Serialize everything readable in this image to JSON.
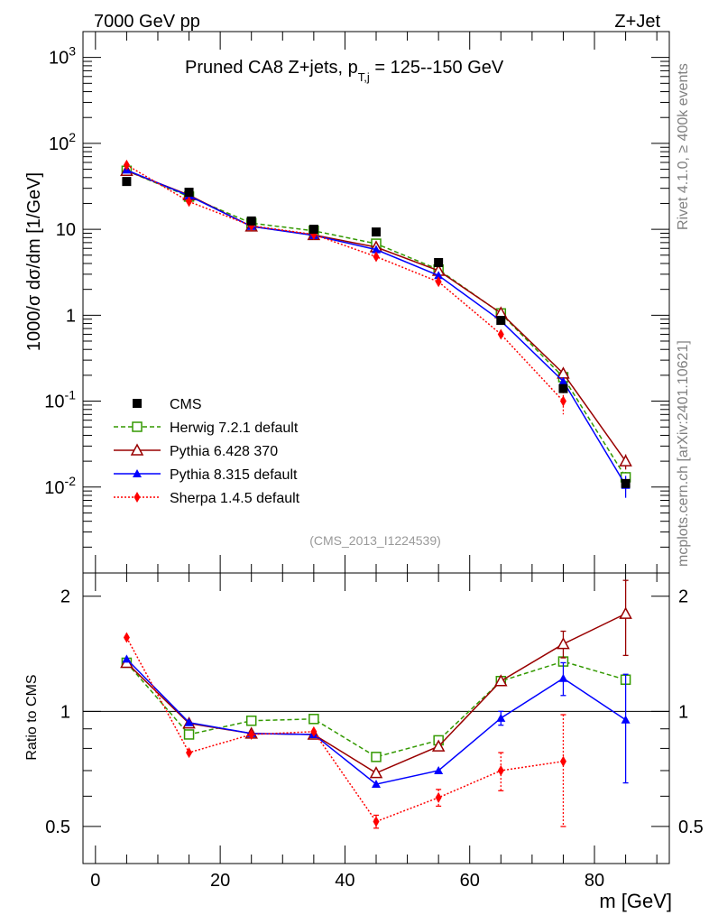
{
  "header": {
    "energy_label": "7000 GeV pp",
    "process_label": "Z+Jet",
    "title_main": "Pruned CA8 Z+jets, p",
    "title_sub": "T,j",
    "title_rest": " = 125--150 GeV",
    "side_top": "Rivet 4.1.0, ≥ 400k events",
    "side_bottom": "mcplots.cern.ch [arXiv:2401.10621]",
    "analysis_id": "(CMS_2013_I1224539)"
  },
  "chart_data": [
    {
      "type": "scatter",
      "panel": "main",
      "ylabel": "1000/σ  dσ/dm [1/GeV]",
      "yscale": "log",
      "ylim": [
        0.001,
        2000
      ],
      "xlim": [
        -2,
        92
      ],
      "ytick_labels": [
        {
          "base": "10",
          "exp": "-2",
          "value": 0.01
        },
        {
          "base": "10",
          "exp": "-1",
          "value": 0.1
        },
        {
          "base": "1",
          "exp": "",
          "value": 1
        },
        {
          "base": "10",
          "exp": "",
          "value": 10
        },
        {
          "base": "10",
          "exp": "2",
          "value": 100
        },
        {
          "base": "10",
          "exp": "3",
          "value": 1000
        }
      ],
      "x": [
        5,
        15,
        25,
        35,
        45,
        55,
        65,
        75,
        85
      ],
      "series": [
        {
          "name": "CMS",
          "color": "#000000",
          "marker": "square-filled",
          "line": "none",
          "values": [
            36,
            27,
            12.5,
            10,
            9.3,
            4.1,
            0.87,
            0.14,
            0.011
          ],
          "errors": [
            0,
            0,
            0,
            0,
            0,
            0,
            0,
            0.01,
            0.001
          ]
        },
        {
          "name": "Herwig 7.2.1 default",
          "color": "#339900",
          "marker": "square-open",
          "line": "dashed",
          "values": [
            48,
            24,
            11.8,
            9.6,
            6.8,
            3.4,
            1.05,
            0.19,
            0.013
          ],
          "errors": [
            0,
            0,
            0,
            0,
            0,
            0,
            0,
            0.01,
            0.002
          ]
        },
        {
          "name": "Pythia 6.428 370",
          "color": "#990000",
          "marker": "triangle-open",
          "line": "solid",
          "values": [
            48,
            25,
            10.8,
            8.6,
            6.2,
            3.3,
            1.06,
            0.21,
            0.02
          ],
          "errors": [
            0,
            0,
            0,
            0,
            0,
            0,
            0,
            0.02,
            0.004
          ]
        },
        {
          "name": "Pythia 8.315 default",
          "color": "#0000ff",
          "marker": "triangle-filled",
          "line": "solid",
          "values": [
            49,
            24.5,
            10.8,
            8.5,
            5.8,
            2.9,
            0.86,
            0.17,
            0.0105
          ],
          "errors": [
            0,
            0,
            0,
            0,
            0,
            0,
            0,
            0.015,
            0.003
          ]
        },
        {
          "name": "Sherpa 1.4.5 default",
          "color": "#ff0000",
          "marker": "diamond-filled",
          "line": "dotted",
          "values": [
            56,
            21,
            11,
            8.7,
            4.8,
            2.45,
            0.6,
            0.1,
            0
          ],
          "errors": [
            0,
            0,
            0,
            0,
            0,
            0,
            0.05,
            0.03,
            0
          ]
        }
      ],
      "legend": "lower-left"
    },
    {
      "type": "line",
      "panel": "ratio",
      "ylabel": "Ratio to CMS",
      "xlabel": "m [GeV]",
      "yscale": "log",
      "ylim": [
        0.4,
        2.3
      ],
      "xlim": [
        -2,
        92
      ],
      "ytick_labels": [
        "0.5",
        "1",
        "2"
      ],
      "ytick_values": [
        0.5,
        1,
        2
      ],
      "xtick_labels": [
        "0",
        "20",
        "40",
        "60",
        "80"
      ],
      "xtick_values": [
        0,
        20,
        40,
        60,
        80
      ],
      "x": [
        5,
        15,
        25,
        35,
        45,
        55,
        65,
        75,
        85
      ],
      "series": [
        {
          "name": "Herwig 7.2.1 default",
          "values": [
            1.34,
            0.87,
            0.945,
            0.955,
            0.76,
            0.84,
            1.2,
            1.35,
            1.21
          ],
          "errors": [
            0,
            0,
            0,
            0,
            0,
            0,
            0,
            0,
            0
          ]
        },
        {
          "name": "Pythia 6.428 370",
          "values": [
            1.34,
            0.93,
            0.875,
            0.87,
            0.69,
            0.81,
            1.2,
            1.5,
            1.8
          ],
          "errors": [
            0,
            0,
            0,
            0,
            0,
            0,
            0,
            0.12,
            0.4
          ]
        },
        {
          "name": "Pythia 8.315 default",
          "values": [
            1.37,
            0.935,
            0.875,
            0.87,
            0.645,
            0.7,
            0.96,
            1.22,
            0.95
          ],
          "errors": [
            0,
            0,
            0,
            0,
            0,
            0,
            0.04,
            0.12,
            0.3
          ]
        },
        {
          "name": "Sherpa 1.4.5 default",
          "values": [
            1.56,
            0.78,
            0.87,
            0.885,
            0.515,
            0.595,
            0.7,
            0.74,
            0
          ],
          "errors": [
            0,
            0,
            0,
            0,
            0.02,
            0.03,
            0.08,
            0.24,
            0
          ]
        }
      ],
      "reference_line": 1
    }
  ]
}
